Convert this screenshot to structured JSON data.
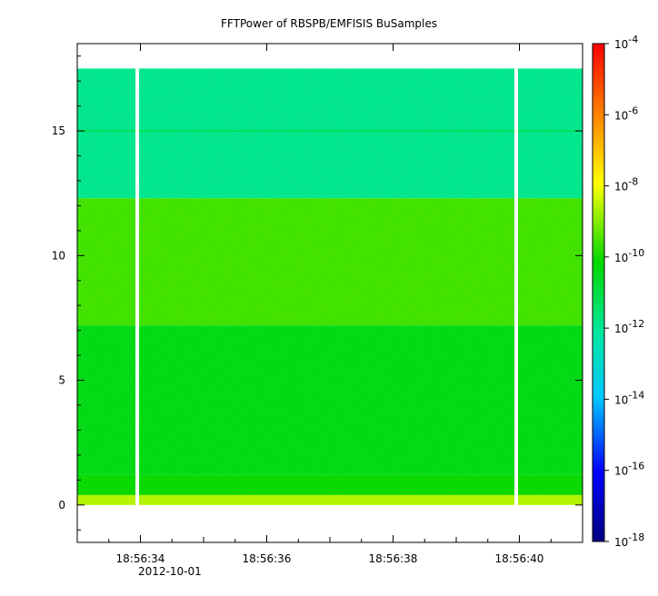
{
  "chart_data": {
    "type": "heatmap",
    "title": "FFTPower of RBSPB/EMFISIS  BuSamples",
    "xlabel": "",
    "ylabel": "",
    "x_ticks": [
      "18:56:34",
      "18:56:36",
      "18:56:38",
      "18:56:40"
    ],
    "x_date_label": "2012-10-01",
    "x_range": [
      "18:56:33.0",
      "18:56:41.0"
    ],
    "y_range": [
      -1.5,
      18.5
    ],
    "y_ticks": [
      0,
      5,
      10,
      15
    ],
    "data_y_range": [
      0,
      17.5
    ],
    "data_gaps_x": [
      "18:56:33.95",
      "18:56:39.95"
    ],
    "bands": [
      {
        "y_from": 0.0,
        "y_to": 0.4,
        "log10_power": -8.6
      },
      {
        "y_from": 0.4,
        "y_to": 1.2,
        "log10_power": -10.1
      },
      {
        "y_from": 1.2,
        "y_to": 7.2,
        "log10_power": -10.4
      },
      {
        "y_from": 7.2,
        "y_to": 12.3,
        "log10_power": -9.6
      },
      {
        "y_from": 12.3,
        "y_to": 17.5,
        "log10_power": -11.9
      }
    ],
    "line_feature": {
      "y": 15,
      "log10_power": -11.2
    },
    "colorbar": {
      "scale": "log",
      "range": [
        1e-18,
        0.0001
      ],
      "tick_labels": [
        {
          "base": "10",
          "exp": "-4"
        },
        {
          "base": "10",
          "exp": "-6"
        },
        {
          "base": "10",
          "exp": "-8"
        },
        {
          "base": "10",
          "exp": "-10"
        },
        {
          "base": "10",
          "exp": "-12"
        },
        {
          "base": "10",
          "exp": "-14"
        },
        {
          "base": "10",
          "exp": "-16"
        },
        {
          "base": "10",
          "exp": "-18"
        }
      ],
      "colors": [
        "#000080",
        "#0000ff",
        "#00c8ff",
        "#00e8a0",
        "#00d800",
        "#ffff00",
        "#ff8000",
        "#ff0000"
      ]
    }
  }
}
